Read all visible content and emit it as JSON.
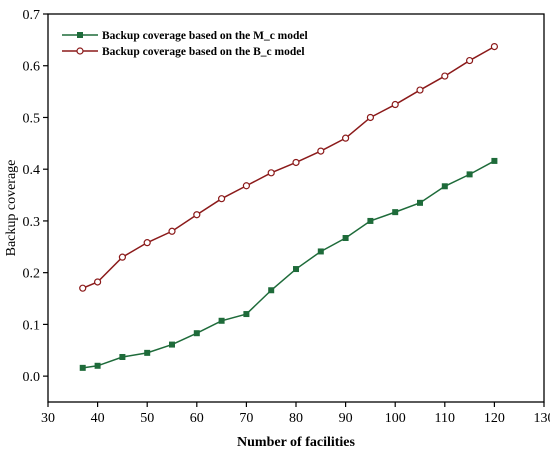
{
  "chart_data": {
    "type": "line",
    "title": "",
    "xlabel": "Number of facilities",
    "ylabel": "Backup coverage",
    "xlim": [
      30,
      130
    ],
    "ylim": [
      -0.05,
      0.7
    ],
    "x_ticks": [
      30,
      40,
      50,
      60,
      70,
      80,
      90,
      100,
      110,
      120,
      130
    ],
    "y_ticks": [
      0.0,
      0.1,
      0.2,
      0.3,
      0.4,
      0.5,
      0.6,
      0.7
    ],
    "y_tick_labels": [
      "0.0",
      "0.1",
      "0.2",
      "0.3",
      "0.4",
      "0.5",
      "0.6",
      "0.7"
    ],
    "grid": false,
    "legend_position": "top-left",
    "x": [
      37,
      40,
      45,
      50,
      55,
      60,
      65,
      70,
      75,
      80,
      85,
      90,
      95,
      100,
      105,
      110,
      115,
      120
    ],
    "series": [
      {
        "name": "Backup coverage based on the M_c model",
        "color": "#1e6b3a",
        "marker": "filled-square",
        "values": [
          0.016,
          0.02,
          0.037,
          0.045,
          0.061,
          0.083,
          0.107,
          0.12,
          0.166,
          0.207,
          0.241,
          0.267,
          0.3,
          0.317,
          0.335,
          0.367,
          0.39,
          0.416
        ]
      },
      {
        "name": "Backup coverage based on the B_c model",
        "color": "#8b1a1a",
        "marker": "open-circle",
        "values": [
          0.17,
          0.182,
          0.23,
          0.258,
          0.28,
          0.312,
          0.343,
          0.368,
          0.393,
          0.413,
          0.435,
          0.46,
          0.5,
          0.525,
          0.553,
          0.58,
          0.61,
          0.637
        ]
      }
    ]
  }
}
